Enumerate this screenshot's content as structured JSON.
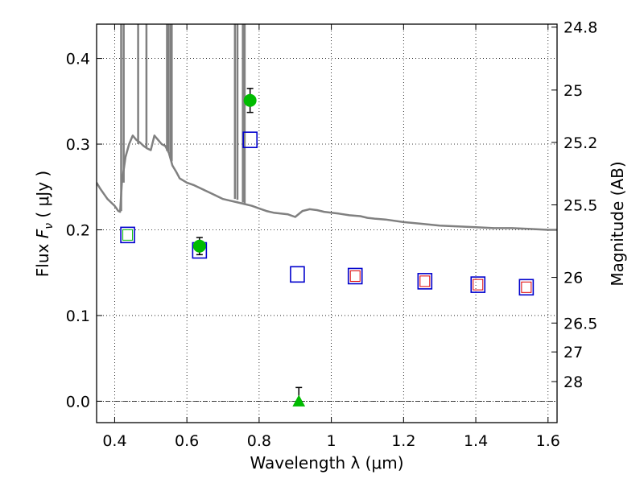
{
  "chart_data": {
    "type": "scatter",
    "xlabel": "Wavelength  λ (μm)",
    "ylabel_left_prefix": "Flux  ",
    "ylabel_left_symbol": "F",
    "ylabel_left_sub": "ν",
    "ylabel_left_unit": "  ( μJy )",
    "ylabel_right": "Magnitude (AB)",
    "xlim": [
      0.35,
      1.625
    ],
    "ylim": [
      -0.025,
      0.44
    ],
    "grid": true,
    "x_ticks": [
      {
        "value": 0.4,
        "label": "0.4"
      },
      {
        "value": 0.6,
        "label": "0.6"
      },
      {
        "value": 0.8,
        "label": "0.8"
      },
      {
        "value": 1.0,
        "label": "1"
      },
      {
        "value": 1.2,
        "label": "1.2"
      },
      {
        "value": 1.4,
        "label": "1.4"
      },
      {
        "value": 1.6,
        "label": "1.6"
      }
    ],
    "y_ticks": [
      {
        "value": 0.0,
        "label": "0.0"
      },
      {
        "value": 0.1,
        "label": "0.1"
      },
      {
        "value": 0.2,
        "label": "0.2"
      },
      {
        "value": 0.3,
        "label": "0.3"
      },
      {
        "value": 0.4,
        "label": "0.4"
      }
    ],
    "right_ticks": [
      {
        "flux": 0.4365,
        "label": "24.8"
      },
      {
        "flux": 0.3631,
        "label": "25"
      },
      {
        "flux": 0.302,
        "label": "25.2"
      },
      {
        "flux": 0.2291,
        "label": "25.5"
      },
      {
        "flux": 0.1445,
        "label": "26"
      },
      {
        "flux": 0.0912,
        "label": "26.5"
      },
      {
        "flux": 0.0575,
        "label": "27"
      },
      {
        "flux": 0.0229,
        "label": "28"
      }
    ],
    "zero_line": 0.0,
    "series": [
      {
        "kind": "sed_model",
        "color": "#808080",
        "x": [
          0.35,
          0.36,
          0.37,
          0.38,
          0.39,
          0.4,
          0.405,
          0.41,
          0.415,
          0.42,
          0.43,
          0.44,
          0.45,
          0.46,
          0.47,
          0.48,
          0.49,
          0.5,
          0.51,
          0.52,
          0.53,
          0.54,
          0.55,
          0.56,
          0.57,
          0.58,
          0.6,
          0.62,
          0.64,
          0.66,
          0.68,
          0.7,
          0.72,
          0.74,
          0.76,
          0.78,
          0.8,
          0.82,
          0.84,
          0.86,
          0.88,
          0.9,
          0.92,
          0.94,
          0.96,
          0.98,
          1.0,
          1.02,
          1.05,
          1.08,
          1.1,
          1.12,
          1.15,
          1.2,
          1.25,
          1.3,
          1.35,
          1.4,
          1.45,
          1.5,
          1.55,
          1.6,
          1.625
        ],
        "y": [
          0.255,
          0.248,
          0.242,
          0.236,
          0.232,
          0.228,
          0.225,
          0.222,
          0.221,
          0.255,
          0.285,
          0.3,
          0.31,
          0.305,
          0.302,
          0.298,
          0.295,
          0.293,
          0.31,
          0.305,
          0.3,
          0.298,
          0.29,
          0.275,
          0.268,
          0.26,
          0.255,
          0.252,
          0.248,
          0.244,
          0.24,
          0.236,
          0.234,
          0.232,
          0.23,
          0.228,
          0.225,
          0.222,
          0.22,
          0.219,
          0.218,
          0.215,
          0.222,
          0.224,
          0.223,
          0.221,
          0.22,
          0.219,
          0.217,
          0.216,
          0.214,
          0.213,
          0.212,
          0.209,
          0.207,
          0.205,
          0.204,
          0.203,
          0.202,
          0.202,
          0.201,
          0.2,
          0.2
        ]
      },
      {
        "kind": "emission_lines",
        "color": "#808080",
        "x": [
          0.418,
          0.425,
          0.465,
          0.488,
          0.545,
          0.549,
          0.555,
          0.558,
          0.733,
          0.74,
          0.755,
          0.76
        ],
        "y_base": [
          0.222,
          0.255,
          0.3,
          0.296,
          0.292,
          0.29,
          0.285,
          0.28,
          0.236,
          0.235,
          0.232,
          0.23
        ],
        "y_top": [
          0.44,
          0.44,
          0.44,
          0.44,
          0.44,
          0.44,
          0.44,
          0.44,
          0.44,
          0.44,
          0.44,
          0.44
        ]
      },
      {
        "kind": "model_photometry",
        "marker": "open-square",
        "color": "#0000cc",
        "x": [
          0.436,
          0.635,
          0.775,
          0.906,
          1.066,
          1.259,
          1.406,
          1.54
        ],
        "y": [
          0.194,
          0.176,
          0.305,
          0.148,
          0.146,
          0.14,
          0.136,
          0.133
        ]
      },
      {
        "kind": "red_inner_squares",
        "marker": "open-square",
        "color": "#dd0000",
        "x": [
          1.066,
          1.259,
          1.406,
          1.54
        ],
        "y": [
          0.146,
          0.14,
          0.136,
          0.133
        ]
      },
      {
        "kind": "green_inner_square",
        "marker": "open-square",
        "color": "#00bb00",
        "x": [
          0.436
        ],
        "y": [
          0.194
        ]
      },
      {
        "kind": "detections",
        "marker": "filled-circle",
        "color": "#00bb00",
        "x": [
          0.635,
          0.775
        ],
        "y": [
          0.181,
          0.351
        ],
        "yerr": [
          0.01,
          0.014
        ]
      },
      {
        "kind": "upper_limit",
        "marker": "filled-triangle",
        "color": "#00bb00",
        "x": [
          0.91
        ],
        "y": [
          0.0
        ],
        "yerr_up": [
          0.016
        ]
      }
    ]
  }
}
